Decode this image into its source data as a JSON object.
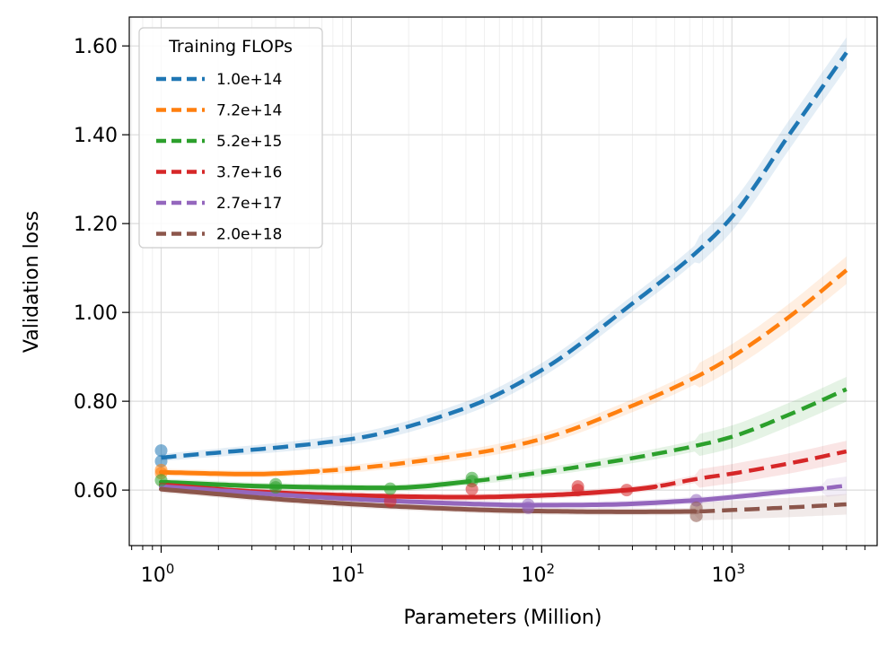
{
  "chart_data": {
    "type": "line",
    "title": "",
    "xlabel": "Parameters (Million)",
    "ylabel": "Validation loss",
    "xscale": "log",
    "xlim": [
      0.68,
      5800
    ],
    "ylim": [
      0.475,
      1.665
    ],
    "grid": true,
    "legend": {
      "title": "Training FLOPs",
      "position": "top-left"
    },
    "x_ticks": [
      {
        "value": 1,
        "base": "10",
        "exp": "0"
      },
      {
        "value": 10,
        "base": "10",
        "exp": "1"
      },
      {
        "value": 100,
        "base": "10",
        "exp": "2"
      },
      {
        "value": 1000,
        "base": "10",
        "exp": "3"
      }
    ],
    "y_ticks": [
      {
        "value": 0.6,
        "label": "0.60"
      },
      {
        "value": 0.8,
        "label": "0.80"
      },
      {
        "value": 1.0,
        "label": "1.00"
      },
      {
        "value": 1.2,
        "label": "1.20"
      },
      {
        "value": 1.4,
        "label": "1.40"
      },
      {
        "value": 1.6,
        "label": "1.60"
      }
    ],
    "series": [
      {
        "name": "1.0e+14",
        "color": "#1f77b4",
        "solid_until": 1,
        "curve": {
          "x": [
            1,
            10,
            40,
            100,
            300,
            650,
            1000,
            2000,
            4000
          ],
          "y": [
            0.673,
            0.715,
            0.785,
            0.87,
            1.02,
            1.135,
            1.215,
            1.4,
            1.585
          ]
        },
        "points": [
          {
            "x": 1,
            "y": 0.689
          },
          {
            "x": 1,
            "y": 0.665
          }
        ]
      },
      {
        "name": "7.2e+14",
        "color": "#ff7f0e",
        "solid_until": 7,
        "curve": {
          "x": [
            1,
            3,
            7,
            40,
            100,
            300,
            650,
            1000,
            2000,
            4000
          ],
          "y": [
            0.64,
            0.636,
            0.643,
            0.68,
            0.715,
            0.79,
            0.855,
            0.9,
            0.99,
            1.095
          ]
        },
        "points": [
          {
            "x": 1,
            "y": 0.645
          },
          {
            "x": 1,
            "y": 0.638
          }
        ]
      },
      {
        "name": "5.2e+15",
        "color": "#2ca02c",
        "solid_until": 43,
        "curve": {
          "x": [
            1,
            4,
            16,
            43,
            100,
            300,
            650,
            1000,
            2000,
            4000
          ],
          "y": [
            0.618,
            0.608,
            0.605,
            0.62,
            0.64,
            0.672,
            0.7,
            0.72,
            0.77,
            0.827
          ]
        },
        "points": [
          {
            "x": 1,
            "y": 0.622
          },
          {
            "x": 4,
            "y": 0.613
          },
          {
            "x": 4,
            "y": 0.606
          },
          {
            "x": 16,
            "y": 0.603
          },
          {
            "x": 43,
            "y": 0.627
          },
          {
            "x": 43,
            "y": 0.62
          }
        ]
      },
      {
        "name": "3.7e+16",
        "color": "#d62728",
        "solid_until": 400,
        "curve": {
          "x": [
            1,
            3,
            10,
            40,
            100,
            280,
            400,
            650,
            1000,
            2000,
            4000
          ],
          "y": [
            0.612,
            0.597,
            0.588,
            0.584,
            0.588,
            0.6,
            0.608,
            0.625,
            0.637,
            0.66,
            0.687
          ]
        },
        "points": [
          {
            "x": 16,
            "y": 0.575
          },
          {
            "x": 43,
            "y": 0.602
          },
          {
            "x": 155,
            "y": 0.608
          },
          {
            "x": 155,
            "y": 0.6
          },
          {
            "x": 280,
            "y": 0.6
          }
        ]
      },
      {
        "name": "2.7e+17",
        "color": "#9467bd",
        "solid_until": 3000,
        "curve": {
          "x": [
            1,
            10,
            50,
            85,
            200,
            650,
            1000,
            2000,
            3000,
            4000
          ],
          "y": [
            0.608,
            0.58,
            0.568,
            0.566,
            0.567,
            0.577,
            0.584,
            0.597,
            0.604,
            0.61
          ]
        },
        "points": [
          {
            "x": 85,
            "y": 0.567
          },
          {
            "x": 85,
            "y": 0.56
          },
          {
            "x": 650,
            "y": 0.577
          }
        ]
      },
      {
        "name": "2.0e+18",
        "color": "#8c564b",
        "solid_until": 650,
        "curve": {
          "x": [
            1,
            5,
            20,
            85,
            300,
            650,
            1000,
            2000,
            4000
          ],
          "y": [
            0.602,
            0.577,
            0.562,
            0.553,
            0.551,
            0.552,
            0.555,
            0.561,
            0.568
          ]
        },
        "points": [
          {
            "x": 650,
            "y": 0.56
          },
          {
            "x": 650,
            "y": 0.542
          }
        ]
      }
    ]
  }
}
